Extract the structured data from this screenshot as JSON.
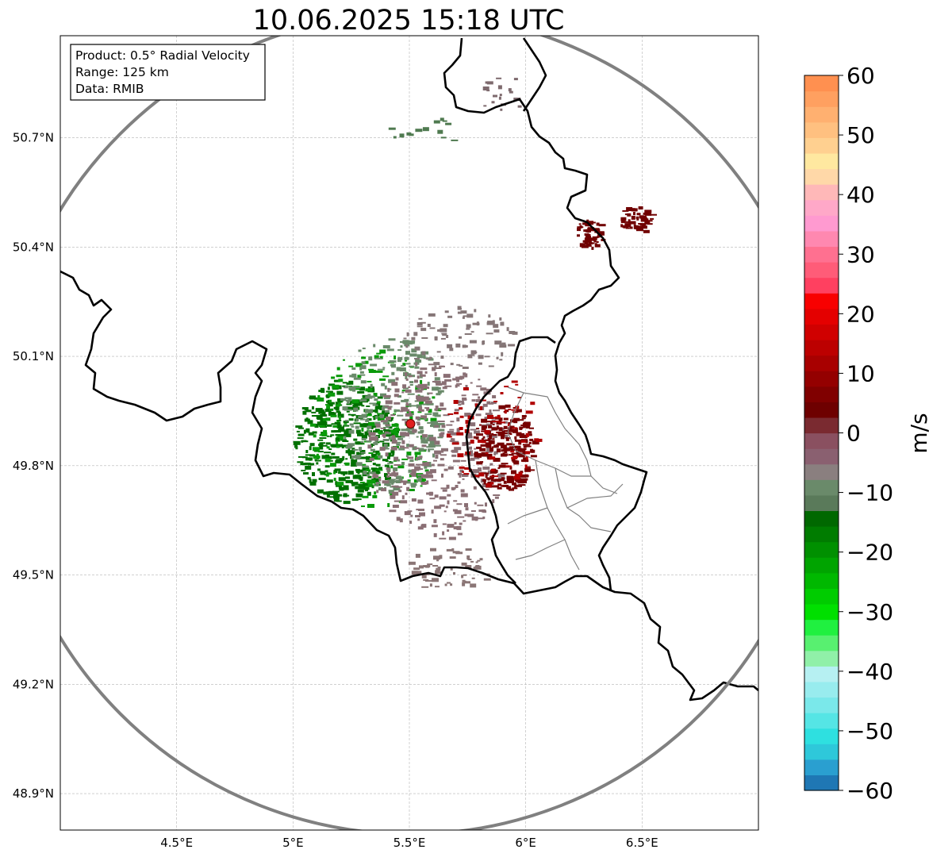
{
  "title": "10.06.2025 15:18 UTC",
  "info_box": {
    "line1": "Product: 0.5° Radial Velocity",
    "line2": "Range: 125 km",
    "line3": "Data: RMIB"
  },
  "axes": {
    "lon_min": 4.0,
    "lon_max": 7.0,
    "lat_min": 48.8,
    "lat_max": 50.98,
    "lat_ticks": [
      {
        "value": 50.7,
        "label": "50.7°N"
      },
      {
        "value": 50.4,
        "label": "50.4°N"
      },
      {
        "value": 50.1,
        "label": "50.1°N"
      },
      {
        "value": 49.8,
        "label": "49.8°N"
      },
      {
        "value": 49.5,
        "label": "49.5°N"
      },
      {
        "value": 49.2,
        "label": "49.2°N"
      },
      {
        "value": 48.9,
        "label": "48.9°N"
      }
    ],
    "lon_ticks": [
      {
        "value": 4.5,
        "label": "4.5°E"
      },
      {
        "value": 5.0,
        "label": "5°E"
      },
      {
        "value": 5.5,
        "label": "5.5°E"
      },
      {
        "value": 6.0,
        "label": "6°E"
      },
      {
        "value": 6.5,
        "label": "6.5°E"
      }
    ],
    "grid": true
  },
  "radar": {
    "site_lon": 5.505,
    "site_lat": 49.915,
    "range_km": 125,
    "site_color": "#e02020",
    "range_ring_color": "#808080"
  },
  "colorbar": {
    "min": -60,
    "max": 60,
    "unit_label": "m/s",
    "tick_labels": [
      "60",
      "50",
      "40",
      "30",
      "20",
      "10",
      "0",
      "−10",
      "−20",
      "−30",
      "−40",
      "−50",
      "−60"
    ],
    "colors": [
      "#1f77b4",
      "#2a9fd0",
      "#2ec8da",
      "#2ee0e0",
      "#55e5e5",
      "#7ae8ea",
      "#98ecee",
      "#b6f0f2",
      "#90f0a8",
      "#58f070",
      "#20f040",
      "#00e000",
      "#00cc00",
      "#00b800",
      "#00a400",
      "#009000",
      "#007c00",
      "#006800",
      "#5a7a5a",
      "#6a8a6a",
      "#8a7f7f",
      "#8a6070",
      "#8a5060",
      "#7a2a30",
      "#6e0000",
      "#800000",
      "#940000",
      "#a80000",
      "#bc0000",
      "#d00000",
      "#e40000",
      "#f80000",
      "#ff4060",
      "#ff5c78",
      "#ff7090",
      "#ff88b0",
      "#ff9ad0",
      "#ffa8c8",
      "#ffb8b8",
      "#ffd8a8",
      "#ffe8a0",
      "#ffd090",
      "#ffc080",
      "#ffb070",
      "#ffa060",
      "#ff9050"
    ]
  },
  "velocity_regions": [
    {
      "name": "inbound-core",
      "lon": 5.22,
      "lat": 49.87,
      "rx": 0.22,
      "ry": 0.17,
      "color": "#007000",
      "count": 420
    },
    {
      "name": "inbound-edge",
      "lon": 5.35,
      "lat": 49.9,
      "rx": 0.28,
      "ry": 0.22,
      "color": "#0a9a0a",
      "count": 160
    },
    {
      "name": "near-zero-west",
      "lon": 5.42,
      "lat": 49.95,
      "rx": 0.22,
      "ry": 0.22,
      "color": "#6a8a6a",
      "count": 260
    },
    {
      "name": "near-zero-east",
      "lon": 5.62,
      "lat": 49.85,
      "rx": 0.3,
      "ry": 0.25,
      "color": "#8a6f74",
      "count": 380
    },
    {
      "name": "near-zero-north",
      "lon": 5.72,
      "lat": 50.15,
      "rx": 0.25,
      "ry": 0.09,
      "color": "#857677",
      "count": 90
    },
    {
      "name": "outbound-core",
      "lon": 5.9,
      "lat": 49.85,
      "rx": 0.13,
      "ry": 0.12,
      "color": "#760000",
      "count": 220
    },
    {
      "name": "outbound-scatter",
      "lon": 5.85,
      "lat": 49.9,
      "rx": 0.2,
      "ry": 0.15,
      "color": "#b00000",
      "count": 70
    },
    {
      "name": "ne-cell-1",
      "lon": 6.27,
      "lat": 50.44,
      "rx": 0.06,
      "ry": 0.04,
      "color": "#700000",
      "count": 55
    },
    {
      "name": "ne-cell-2",
      "lon": 6.47,
      "lat": 50.48,
      "rx": 0.07,
      "ry": 0.04,
      "color": "#700000",
      "count": 55
    },
    {
      "name": "north-clutter",
      "lon": 5.9,
      "lat": 50.82,
      "rx": 0.12,
      "ry": 0.05,
      "color": "#7e6a6e",
      "count": 18
    },
    {
      "name": "north-green",
      "lon": 5.55,
      "lat": 50.72,
      "rx": 0.18,
      "ry": 0.04,
      "color": "#4f7a50",
      "count": 14
    },
    {
      "name": "south-tail",
      "lon": 5.65,
      "lat": 49.52,
      "rx": 0.2,
      "ry": 0.06,
      "color": "#8a7575",
      "count": 60
    }
  ],
  "borders": {
    "thick_color": "#000000",
    "thin_color": "#808080"
  }
}
